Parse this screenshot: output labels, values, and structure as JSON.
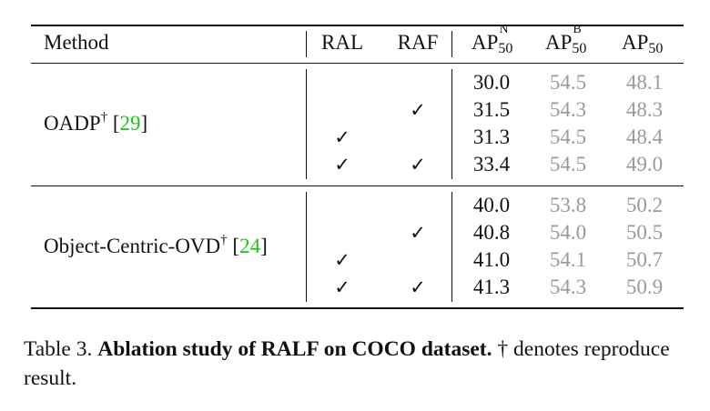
{
  "table": {
    "columns": {
      "method": "Method",
      "ral": "RAL",
      "raf": "RAF",
      "apn": {
        "base": "AP",
        "sup": "N",
        "sub": "50"
      },
      "apb": {
        "base": "AP",
        "sup": "B",
        "sub": "50"
      },
      "ap": {
        "base": "AP",
        "sub": "50"
      }
    },
    "groups": [
      {
        "method": "OADP",
        "dagger": "†",
        "cite_open": "[",
        "cite": "29",
        "cite_close": "]",
        "rows": [
          {
            "ral": "",
            "raf": "",
            "apn": "30.0",
            "apb": "54.5",
            "ap": "48.1"
          },
          {
            "ral": "",
            "raf": "✓",
            "apn": "31.5",
            "apb": "54.3",
            "ap": "48.3"
          },
          {
            "ral": "✓",
            "raf": "",
            "apn": "31.3",
            "apb": "54.5",
            "ap": "48.4"
          },
          {
            "ral": "✓",
            "raf": "✓",
            "apn": "33.4",
            "apb": "54.5",
            "ap": "49.0"
          }
        ]
      },
      {
        "method": "Object-Centric-OVD",
        "dagger": "†",
        "cite_open": "[",
        "cite": "24",
        "cite_close": "]",
        "rows": [
          {
            "ral": "",
            "raf": "",
            "apn": "40.0",
            "apb": "53.8",
            "ap": "50.2"
          },
          {
            "ral": "",
            "raf": "✓",
            "apn": "40.8",
            "apb": "54.0",
            "ap": "50.5"
          },
          {
            "ral": "✓",
            "raf": "",
            "apn": "41.0",
            "apb": "54.1",
            "ap": "50.7"
          },
          {
            "ral": "✓",
            "raf": "✓",
            "apn": "41.3",
            "apb": "54.3",
            "ap": "50.9"
          }
        ]
      }
    ]
  },
  "caption": {
    "label": "Table 3.",
    "title": "Ablation study of RALF on COCO dataset.",
    "note": "† denotes reproduce result."
  },
  "colors": {
    "citation": "#19c719",
    "muted": "#9a9a9a"
  }
}
